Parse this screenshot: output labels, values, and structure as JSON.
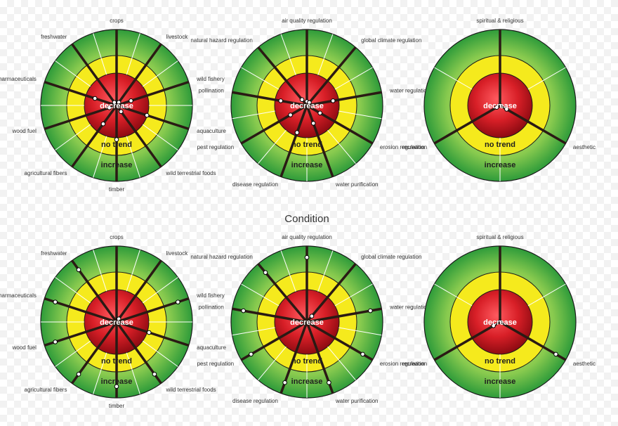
{
  "caption": "Condition",
  "ring_labels": {
    "inner": "decrease",
    "middle": "no trend",
    "outer": "increase"
  },
  "colors": {
    "red_center": "#e8343a",
    "red_edge": "#8e0b12",
    "yellow": "#f5ea1d",
    "green_light": "#b8e06a",
    "green_dark": "#2e9b3a",
    "spoke": "#2a1a14",
    "divider": "#ffffff",
    "outline": "#1a1a1a"
  },
  "diagrams": [
    {
      "id": "top-left",
      "sectors": [
        {
          "name": "crops",
          "value": 0
        },
        {
          "name": "livestock",
          "value": 0.05
        },
        {
          "name": "wild fishery",
          "value": 0.2
        },
        {
          "name": "aquaculture",
          "value": 0.42
        },
        {
          "name": "wild terrestrial foods",
          "value": 0.1
        },
        {
          "name": "timber",
          "value": 0.45
        },
        {
          "name": "agricultural fibers",
          "value": 0.3
        },
        {
          "name": "wood fuel",
          "value": 0.1
        },
        {
          "name": "pharmaceuticals",
          "value": 0.3
        },
        {
          "name": "freshwater",
          "value": 0.05
        }
      ]
    },
    {
      "id": "top-middle",
      "sectors": [
        {
          "name": "air quality regulation",
          "value": 0.05
        },
        {
          "name": "global climate regulation",
          "value": 0.05
        },
        {
          "name": "water regulation",
          "value": 0.35
        },
        {
          "name": "erosion regulation",
          "value": 0.2
        },
        {
          "name": "water purification",
          "value": 0.25
        },
        {
          "name": "disease regulation",
          "value": 0.38
        },
        {
          "name": "pest regulation",
          "value": 0.25
        },
        {
          "name": "pollination",
          "value": 0.35
        },
        {
          "name": "natural hazard regulation",
          "value": 0.1
        }
      ]
    },
    {
      "id": "top-right",
      "sectors": [
        {
          "name": "spiritual & religious",
          "value": 0
        },
        {
          "name": "aesthetic",
          "value": 0.1
        },
        {
          "name": "recreation",
          "value": 0.05
        }
      ]
    },
    {
      "id": "bottom-left",
      "sectors": [
        {
          "name": "crops",
          "value": 0
        },
        {
          "name": "livestock",
          "value": 0.05
        },
        {
          "name": "wild fishery",
          "value": 0.85
        },
        {
          "name": "aquaculture",
          "value": 0.45
        },
        {
          "name": "wild terrestrial foods",
          "value": 0.85
        },
        {
          "name": "timber",
          "value": 0.85
        },
        {
          "name": "agricultural fibers",
          "value": 0.85
        },
        {
          "name": "wood fuel",
          "value": 0.85
        },
        {
          "name": "pharmaceuticals",
          "value": 0.85
        },
        {
          "name": "freshwater",
          "value": 0.85
        }
      ]
    },
    {
      "id": "bottom-middle",
      "sectors": [
        {
          "name": "air quality regulation",
          "value": 0.85
        },
        {
          "name": "global climate regulation",
          "value": 0.1
        },
        {
          "name": "water regulation",
          "value": 0.85
        },
        {
          "name": "erosion regulation",
          "value": 0.85
        },
        {
          "name": "water purification",
          "value": 0.85
        },
        {
          "name": "disease regulation",
          "value": 0.85
        },
        {
          "name": "pest regulation",
          "value": 0.85
        },
        {
          "name": "pollination",
          "value": 0.85
        },
        {
          "name": "natural hazard regulation",
          "value": 0.85
        }
      ]
    },
    {
      "id": "bottom-right",
      "sectors": [
        {
          "name": "spiritual & religious",
          "value": 0
        },
        {
          "name": "aesthetic",
          "value": 0.85
        },
        {
          "name": "recreation",
          "value": 0.1
        }
      ]
    }
  ]
}
